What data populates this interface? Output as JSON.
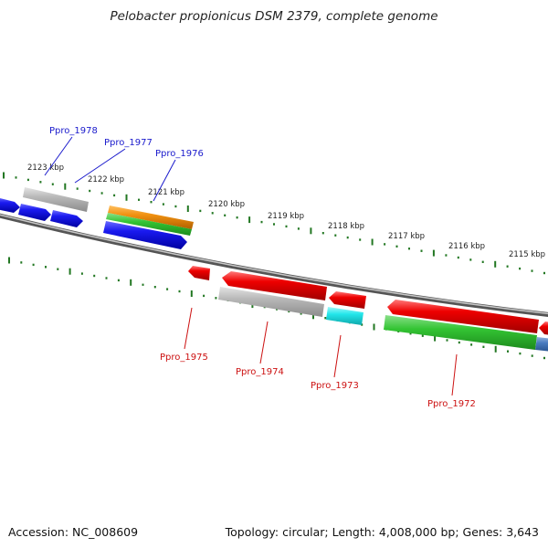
{
  "title": "Pelobacter propionicus DSM 2379, complete genome",
  "accession_label": "Accession: NC_008609",
  "summary_label": "Topology: circular; Length: 4,008,000 bp; Genes: 3,643",
  "kbp_ticks": [
    "2123 kbp",
    "2122 kbp",
    "2121 kbp",
    "2120 kbp",
    "2119 kbp",
    "2118 kbp",
    "2117 kbp",
    "2116 kbp",
    "2115 kbp"
  ],
  "gene_labels_top": [
    "Ppro_1978",
    "Ppro_1977",
    "Ppro_1976"
  ],
  "gene_labels_bottom": [
    "Ppro_1975",
    "Ppro_1974",
    "Ppro_1973",
    "Ppro_1972"
  ],
  "colors": {
    "cds": "#ee0000",
    "cds_top": "#1010e0",
    "gray": "#b0b0b0",
    "orange": "#f09010",
    "green": "#33c433",
    "cyan": "#22e6ea",
    "backbone": "#8a8a8a",
    "tick": "#227722"
  }
}
